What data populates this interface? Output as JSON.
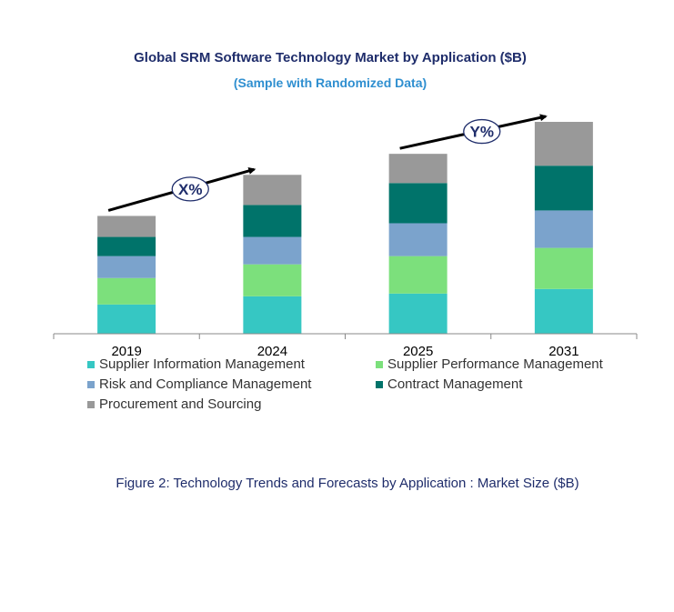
{
  "chart_data": {
    "type": "bar",
    "stacked": true,
    "title": "Global SRM Software Technology Market by Application ($B)",
    "subtitle": "(Sample with Randomized Data)",
    "categories": [
      "2019",
      "2024",
      "2025",
      "2031"
    ],
    "series": [
      {
        "name": "Supplier Information Management",
        "color": "#36c7c3",
        "values": [
          32,
          41,
          44,
          49
        ]
      },
      {
        "name": "Supplier Performance Management",
        "color": "#7ce07c",
        "values": [
          29,
          35,
          41,
          45
        ]
      },
      {
        "name": "Risk and Compliance Management",
        "color": "#7ba3cc",
        "values": [
          24,
          30,
          36,
          41
        ]
      },
      {
        "name": "Contract Management",
        "color": "#00736a",
        "values": [
          21,
          35,
          44,
          49
        ]
      },
      {
        "name": "Procurement and Sourcing",
        "color": "#999999",
        "values": [
          23,
          33,
          32,
          48
        ]
      }
    ],
    "ylim": [
      0,
      235
    ],
    "grid": false,
    "legend_position": "bottom",
    "annotations": [
      {
        "label": "X%",
        "from": "2019",
        "to": "2024"
      },
      {
        "label": "Y%",
        "from": "2025",
        "to": "2031"
      }
    ]
  },
  "caption": "Figure 2: Technology  Trends  and Forecasts by Application : Market Size ($B)"
}
